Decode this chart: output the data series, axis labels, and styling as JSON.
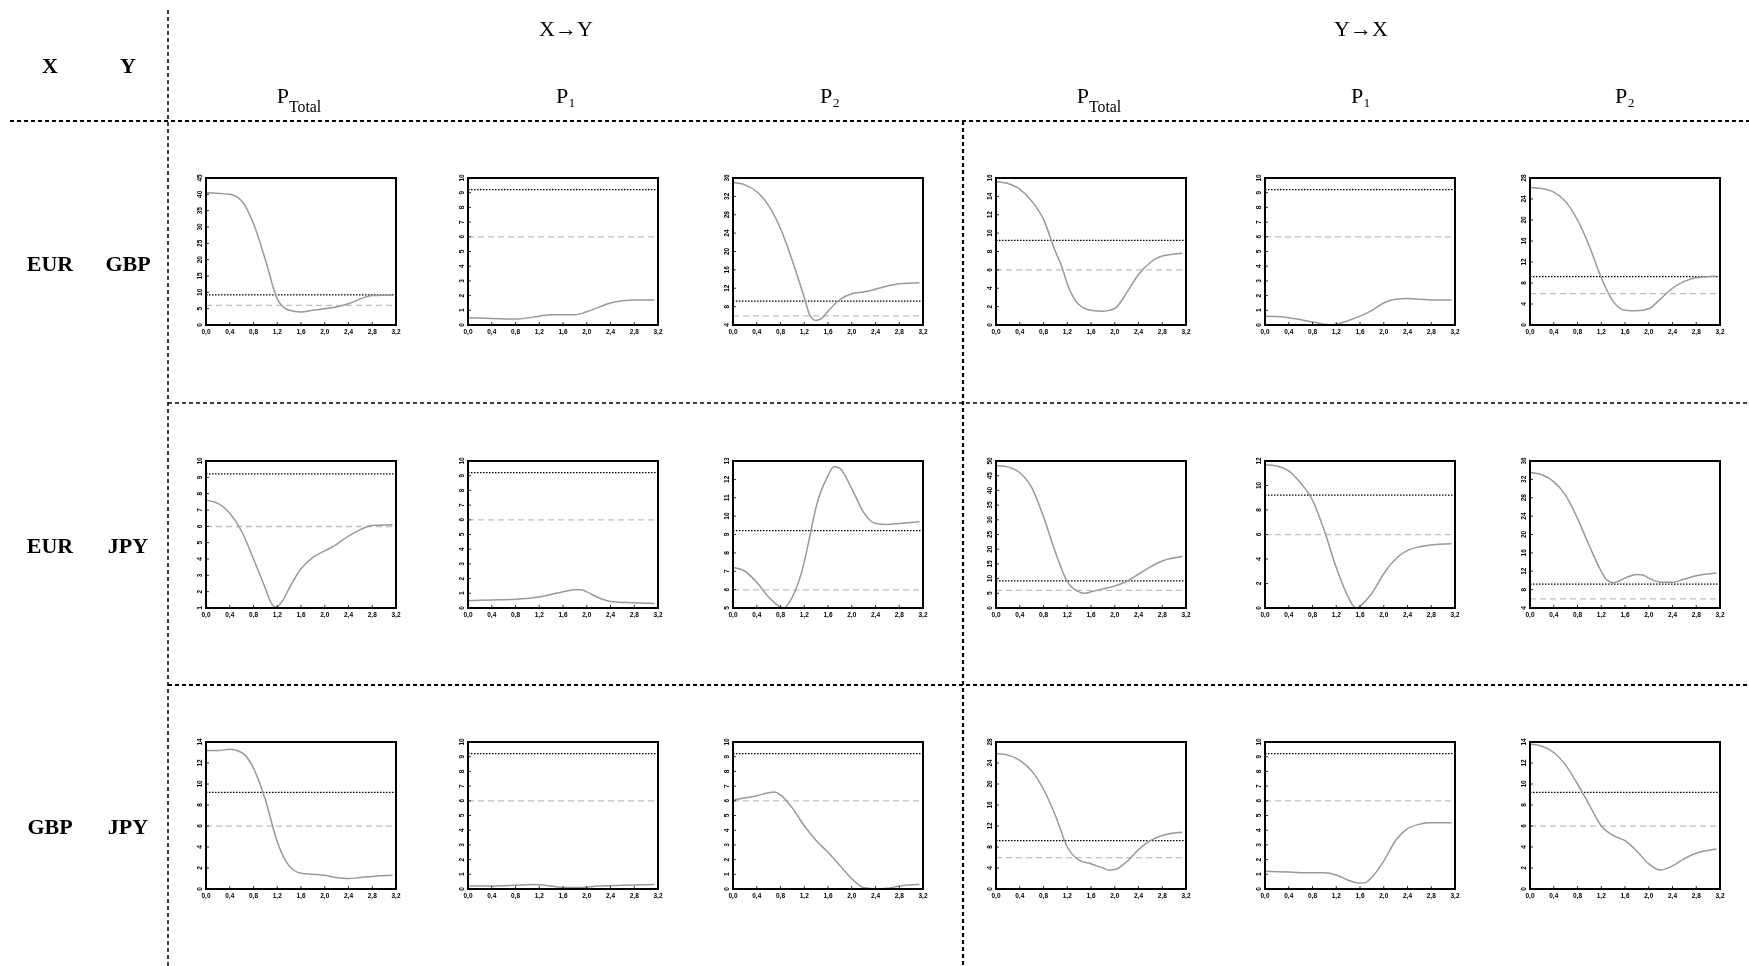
{
  "chart_data": [
    {
      "type": "other",
      "annotations": [
        "X",
        "Y",
        "X→Y",
        "Y→X",
        "P$_{Total}$",
        "P₁",
        "P₂",
        "P$_{Total}$",
        "P₁",
        "P₂",
        "EUR",
        "GBP",
        "EUR",
        "JPY",
        "GBP",
        "JPY"
      ]
    },
    {
      "type": "line",
      "x": [
        0,
        0.4,
        0.6,
        0.8,
        1.0,
        1.2,
        1.4,
        1.6,
        1.8,
        2.0,
        2.2,
        2.4,
        2.6,
        2.8,
        3.14
      ],
      "values": [
        40.5,
        40,
        38,
        31,
        20,
        8,
        4.5,
        4,
        4.5,
        5,
        5.5,
        6.5,
        8,
        9,
        9.2
      ],
      "color": "#999999",
      "xlim": [
        0,
        3.2
      ],
      "xticks": [
        {
          "value": 0,
          "label": "0,0"
        },
        {
          "value": 0.4,
          "label": "0,4"
        },
        {
          "value": 0.8,
          "label": "0,8"
        },
        {
          "value": 1.2,
          "label": "1,2"
        },
        {
          "value": 1.6,
          "label": "1,6"
        },
        {
          "value": 2.0,
          "label": "2,0"
        },
        {
          "value": 2.4,
          "label": "2,4"
        },
        {
          "value": 2.8,
          "label": "2,8"
        },
        {
          "value": 3.2,
          "label": "3,2"
        }
      ],
      "ylim": [
        0,
        45
      ],
      "yticks": [
        0,
        5,
        10,
        15,
        20,
        25,
        30,
        35,
        40,
        45
      ],
      "ref_lines": [
        {
          "axis": "y",
          "value": 9.21,
          "color": "#000000",
          "line_style": "dotted"
        },
        {
          "axis": "y",
          "value": 5.99,
          "color": "#c0c0c0",
          "line_style": "dashed"
        }
      ]
    },
    {
      "type": "line",
      "x": [
        0,
        0.4,
        0.8,
        1.2,
        1.4,
        1.6,
        1.8,
        2.0,
        2.2,
        2.4,
        2.6,
        2.8,
        3.14
      ],
      "values": [
        0.5,
        0.45,
        0.4,
        0.6,
        0.7,
        0.7,
        0.7,
        0.9,
        1.2,
        1.5,
        1.65,
        1.7,
        1.7
      ],
      "color": "#999999",
      "xlim": [
        0,
        3.2
      ],
      "xticks": [
        {
          "value": 0,
          "label": "0,0"
        },
        {
          "value": 0.4,
          "label": "0,4"
        },
        {
          "value": 0.8,
          "label": "0,8"
        },
        {
          "value": 1.2,
          "label": "1,2"
        },
        {
          "value": 1.6,
          "label": "1,6"
        },
        {
          "value": 2.0,
          "label": "2,0"
        },
        {
          "value": 2.4,
          "label": "2,4"
        },
        {
          "value": 2.8,
          "label": "2,8"
        },
        {
          "value": 3.2,
          "label": "3,2"
        }
      ],
      "ylim": [
        0,
        10
      ],
      "yticks": [
        0,
        1,
        2,
        3,
        4,
        5,
        6,
        7,
        8,
        9,
        10
      ],
      "ref_lines": [
        {
          "axis": "y",
          "value": 9.21,
          "color": "#000000",
          "line_style": "dotted"
        },
        {
          "axis": "y",
          "value": 5.99,
          "color": "#c0c0c0",
          "line_style": "dashed"
        }
      ]
    },
    {
      "type": "line",
      "x": [
        0,
        0.2,
        0.4,
        0.6,
        0.8,
        1.0,
        1.2,
        1.3,
        1.4,
        1.5,
        1.6,
        1.8,
        2.0,
        2.2,
        2.4,
        2.6,
        2.8,
        3.14
      ],
      "values": [
        35,
        34.5,
        33,
        30,
        25,
        18,
        10,
        6,
        5,
        5.5,
        7,
        9.5,
        10.8,
        11.2,
        11.8,
        12.5,
        13,
        13.2
      ],
      "color": "#999999",
      "xlim": [
        0,
        3.2
      ],
      "xticks": [
        {
          "value": 0,
          "label": "0,0"
        },
        {
          "value": 0.4,
          "label": "0,4"
        },
        {
          "value": 0.8,
          "label": "0,8"
        },
        {
          "value": 1.2,
          "label": "1,2"
        },
        {
          "value": 1.6,
          "label": "1,6"
        },
        {
          "value": 2.0,
          "label": "2,0"
        },
        {
          "value": 2.4,
          "label": "2,4"
        },
        {
          "value": 2.8,
          "label": "2,8"
        },
        {
          "value": 3.2,
          "label": "3,2"
        }
      ],
      "ylim": [
        4,
        36
      ],
      "yticks": [
        4,
        8,
        12,
        16,
        20,
        24,
        28,
        32,
        36
      ],
      "ref_lines": [
        {
          "axis": "y",
          "value": 9.21,
          "color": "#000000",
          "line_style": "dotted"
        },
        {
          "axis": "y",
          "value": 5.99,
          "color": "#c0c0c0",
          "line_style": "dashed"
        }
      ]
    },
    {
      "type": "line",
      "x": [
        0,
        0.2,
        0.4,
        0.6,
        0.8,
        1.0,
        1.1,
        1.2,
        1.4,
        1.6,
        1.8,
        2.0,
        2.2,
        2.4,
        2.6,
        2.8,
        3.14
      ],
      "values": [
        15.6,
        15.4,
        14.8,
        13.5,
        11.5,
        8,
        6.5,
        4.5,
        2.2,
        1.6,
        1.5,
        1.8,
        3.5,
        5.5,
        6.8,
        7.5,
        7.8
      ],
      "color": "#999999",
      "xlim": [
        0,
        3.2
      ],
      "xticks": [
        {
          "value": 0,
          "label": "0,0"
        },
        {
          "value": 0.4,
          "label": "0,4"
        },
        {
          "value": 0.8,
          "label": "0,8"
        },
        {
          "value": 1.2,
          "label": "1,2"
        },
        {
          "value": 1.6,
          "label": "1,6"
        },
        {
          "value": 2.0,
          "label": "2,0"
        },
        {
          "value": 2.4,
          "label": "2,4"
        },
        {
          "value": 2.8,
          "label": "2,8"
        },
        {
          "value": 3.2,
          "label": "3,2"
        }
      ],
      "ylim": [
        0,
        16
      ],
      "yticks": [
        0,
        2,
        4,
        6,
        8,
        10,
        12,
        14,
        16
      ],
      "ref_lines": [
        {
          "axis": "y",
          "value": 9.21,
          "color": "#000000",
          "line_style": "dotted"
        },
        {
          "axis": "y",
          "value": 5.99,
          "color": "#c0c0c0",
          "line_style": "dashed"
        }
      ]
    },
    {
      "type": "line",
      "x": [
        0,
        0.4,
        0.8,
        1.0,
        1.1,
        1.2,
        1.4,
        1.6,
        1.8,
        2.0,
        2.2,
        2.4,
        2.6,
        2.8,
        3.14
      ],
      "values": [
        0.6,
        0.5,
        0.2,
        0.05,
        0,
        0.05,
        0.3,
        0.6,
        1.0,
        1.5,
        1.75,
        1.8,
        1.75,
        1.7,
        1.7
      ],
      "color": "#999999",
      "xlim": [
        0,
        3.2
      ],
      "xticks": [
        {
          "value": 0,
          "label": "0,0"
        },
        {
          "value": 0.4,
          "label": "0,4"
        },
        {
          "value": 0.8,
          "label": "0,8"
        },
        {
          "value": 1.2,
          "label": "1,2"
        },
        {
          "value": 1.6,
          "label": "1,6"
        },
        {
          "value": 2.0,
          "label": "2,0"
        },
        {
          "value": 2.4,
          "label": "2,4"
        },
        {
          "value": 2.8,
          "label": "2,8"
        },
        {
          "value": 3.2,
          "label": "3,2"
        }
      ],
      "ylim": [
        0,
        10
      ],
      "yticks": [
        0,
        1,
        2,
        3,
        4,
        5,
        6,
        7,
        8,
        9,
        10
      ],
      "ref_lines": [
        {
          "axis": "y",
          "value": 9.21,
          "color": "#000000",
          "line_style": "dotted"
        },
        {
          "axis": "y",
          "value": 5.99,
          "color": "#c0c0c0",
          "line_style": "dashed"
        }
      ]
    },
    {
      "type": "line",
      "x": [
        0,
        0.2,
        0.4,
        0.6,
        0.8,
        1.0,
        1.2,
        1.4,
        1.6,
        1.8,
        2.0,
        2.2,
        2.4,
        2.6,
        2.8,
        3.14
      ],
      "values": [
        26.2,
        26,
        25.3,
        23.5,
        20,
        15,
        9,
        4.5,
        2.8,
        2.7,
        3.1,
        5,
        7,
        8.3,
        9,
        9.3
      ],
      "color": "#999999",
      "xlim": [
        0,
        3.2
      ],
      "xticks": [
        {
          "value": 0,
          "label": "0,0"
        },
        {
          "value": 0.4,
          "label": "0,4"
        },
        {
          "value": 0.8,
          "label": "0,8"
        },
        {
          "value": 1.2,
          "label": "1,2"
        },
        {
          "value": 1.6,
          "label": "1,6"
        },
        {
          "value": 2.0,
          "label": "2,0"
        },
        {
          "value": 2.4,
          "label": "2,4"
        },
        {
          "value": 2.8,
          "label": "2,8"
        },
        {
          "value": 3.2,
          "label": "3,2"
        }
      ],
      "ylim": [
        0,
        28
      ],
      "yticks": [
        0,
        4,
        8,
        12,
        16,
        20,
        24,
        28
      ],
      "ref_lines": [
        {
          "axis": "y",
          "value": 9.21,
          "color": "#000000",
          "line_style": "dotted"
        },
        {
          "axis": "y",
          "value": 5.99,
          "color": "#c0c0c0",
          "line_style": "dashed"
        }
      ]
    },
    {
      "type": "line",
      "x": [
        0,
        0.2,
        0.4,
        0.6,
        0.8,
        1.0,
        1.1,
        1.17,
        1.3,
        1.4,
        1.6,
        1.8,
        2.0,
        2.2,
        2.4,
        2.6,
        2.8,
        3.14
      ],
      "values": [
        7.6,
        7.4,
        6.8,
        5.7,
        4,
        2.2,
        1.3,
        1.05,
        1.5,
        2.2,
        3.4,
        4.1,
        4.5,
        4.9,
        5.4,
        5.8,
        6.05,
        6.1
      ],
      "color": "#999999",
      "xlim": [
        0,
        3.2
      ],
      "xticks": [
        {
          "value": 0,
          "label": "0,0"
        },
        {
          "value": 0.4,
          "label": "0,4"
        },
        {
          "value": 0.8,
          "label": "0,8"
        },
        {
          "value": 1.2,
          "label": "1,2"
        },
        {
          "value": 1.6,
          "label": "1,6"
        },
        {
          "value": 2.0,
          "label": "2,0"
        },
        {
          "value": 2.4,
          "label": "2,4"
        },
        {
          "value": 2.8,
          "label": "2,8"
        },
        {
          "value": 3.2,
          "label": "3,2"
        }
      ],
      "ylim": [
        1,
        10
      ],
      "yticks": [
        1,
        2,
        3,
        4,
        5,
        6,
        7,
        8,
        9,
        10
      ],
      "ref_lines": [
        {
          "axis": "y",
          "value": 9.21,
          "color": "#000000",
          "line_style": "dotted"
        },
        {
          "axis": "y",
          "value": 5.99,
          "color": "#c0c0c0",
          "line_style": "dashed"
        }
      ]
    },
    {
      "type": "line",
      "x": [
        0,
        0.4,
        0.8,
        1.2,
        1.6,
        1.8,
        1.9,
        2.0,
        2.2,
        2.4,
        2.8,
        3.14
      ],
      "values": [
        0.5,
        0.55,
        0.6,
        0.75,
        1.1,
        1.25,
        1.25,
        1.1,
        0.7,
        0.45,
        0.35,
        0.3
      ],
      "color": "#999999",
      "xlim": [
        0,
        3.2
      ],
      "xticks": [
        {
          "value": 0,
          "label": "0,0"
        },
        {
          "value": 0.4,
          "label": "0,4"
        },
        {
          "value": 0.8,
          "label": "0,8"
        },
        {
          "value": 1.2,
          "label": "1,2"
        },
        {
          "value": 1.6,
          "label": "1,6"
        },
        {
          "value": 2.0,
          "label": "2,0"
        },
        {
          "value": 2.4,
          "label": "2,4"
        },
        {
          "value": 2.8,
          "label": "2,8"
        },
        {
          "value": 3.2,
          "label": "3,2"
        }
      ],
      "ylim": [
        0,
        10
      ],
      "yticks": [
        0,
        1,
        2,
        3,
        4,
        5,
        6,
        7,
        8,
        9,
        10
      ],
      "ref_lines": [
        {
          "axis": "y",
          "value": 9.21,
          "color": "#000000",
          "line_style": "dotted"
        },
        {
          "axis": "y",
          "value": 5.99,
          "color": "#c0c0c0",
          "line_style": "dashed"
        }
      ]
    },
    {
      "type": "line",
      "x": [
        0,
        0.2,
        0.4,
        0.6,
        0.8,
        0.85,
        1.0,
        1.2,
        1.3,
        1.4,
        1.6,
        1.7,
        1.8,
        2.0,
        2.2,
        2.4,
        2.6,
        2.8,
        3.14
      ],
      "values": [
        7.2,
        7.0,
        6.4,
        5.6,
        5.05,
        5,
        5.6,
        7.5,
        9,
        10.5,
        12.2,
        12.7,
        12.6,
        11.5,
        10.2,
        9.6,
        9.55,
        9.6,
        9.7
      ],
      "color": "#999999",
      "xlim": [
        0,
        3.2
      ],
      "xticks": [
        {
          "value": 0,
          "label": "0,0"
        },
        {
          "value": 0.4,
          "label": "0,4"
        },
        {
          "value": 0.8,
          "label": "0,8"
        },
        {
          "value": 1.2,
          "label": "1,2"
        },
        {
          "value": 1.6,
          "label": "1,6"
        },
        {
          "value": 2.0,
          "label": "2,0"
        },
        {
          "value": 2.4,
          "label": "2,4"
        },
        {
          "value": 2.8,
          "label": "2,8"
        },
        {
          "value": 3.2,
          "label": "3,2"
        }
      ],
      "ylim": [
        5,
        13
      ],
      "yticks": [
        5,
        6,
        7,
        8,
        9,
        10,
        11,
        12,
        13
      ],
      "ref_lines": [
        {
          "axis": "y",
          "value": 9.21,
          "color": "#000000",
          "line_style": "dotted"
        },
        {
          "axis": "y",
          "value": 5.99,
          "color": "#c0c0c0",
          "line_style": "dashed"
        }
      ]
    },
    {
      "type": "line",
      "x": [
        0,
        0.2,
        0.4,
        0.6,
        0.8,
        1.0,
        1.2,
        1.4,
        1.5,
        1.6,
        1.8,
        2.0,
        2.2,
        2.4,
        2.6,
        2.8,
        3.14
      ],
      "values": [
        48.5,
        48,
        46,
        41,
        31,
        19,
        9,
        5.5,
        5,
        5.5,
        6.5,
        7.5,
        9,
        11.5,
        14,
        16,
        17.5
      ],
      "color": "#999999",
      "xlim": [
        0,
        3.2
      ],
      "xticks": [
        {
          "value": 0,
          "label": "0,0"
        },
        {
          "value": 0.4,
          "label": "0,4"
        },
        {
          "value": 0.8,
          "label": "0,8"
        },
        {
          "value": 1.2,
          "label": "1,2"
        },
        {
          "value": 1.6,
          "label": "1,6"
        },
        {
          "value": 2.0,
          "label": "2,0"
        },
        {
          "value": 2.4,
          "label": "2,4"
        },
        {
          "value": 2.8,
          "label": "2,8"
        },
        {
          "value": 3.2,
          "label": "3,2"
        }
      ],
      "ylim": [
        0,
        50
      ],
      "yticks": [
        0,
        5,
        10,
        15,
        20,
        25,
        30,
        35,
        40,
        45,
        50
      ],
      "ref_lines": [
        {
          "axis": "y",
          "value": 9.21,
          "color": "#000000",
          "line_style": "dotted"
        },
        {
          "axis": "y",
          "value": 5.99,
          "color": "#c0c0c0",
          "line_style": "dashed"
        }
      ]
    },
    {
      "type": "line",
      "x": [
        0,
        0.2,
        0.4,
        0.6,
        0.8,
        1.0,
        1.2,
        1.4,
        1.5,
        1.55,
        1.6,
        1.8,
        2.0,
        2.2,
        2.4,
        2.6,
        2.8,
        3.14
      ],
      "values": [
        11.7,
        11.6,
        11.2,
        10.2,
        8.8,
        6.3,
        3.3,
        0.9,
        0.1,
        0,
        0.15,
        1.2,
        2.8,
        4,
        4.7,
        5,
        5.15,
        5.25
      ],
      "color": "#999999",
      "xlim": [
        0,
        3.2
      ],
      "xticks": [
        {
          "value": 0,
          "label": "0,0"
        },
        {
          "value": 0.4,
          "label": "0,4"
        },
        {
          "value": 0.8,
          "label": "0,8"
        },
        {
          "value": 1.2,
          "label": "1,2"
        },
        {
          "value": 1.6,
          "label": "1,6"
        },
        {
          "value": 2.0,
          "label": "2,0"
        },
        {
          "value": 2.4,
          "label": "2,4"
        },
        {
          "value": 2.8,
          "label": "2,8"
        },
        {
          "value": 3.2,
          "label": "3,2"
        }
      ],
      "ylim": [
        0,
        12
      ],
      "yticks": [
        0,
        2,
        4,
        6,
        8,
        10,
        12
      ],
      "ref_lines": [
        {
          "axis": "y",
          "value": 9.21,
          "color": "#000000",
          "line_style": "dotted"
        },
        {
          "axis": "y",
          "value": 5.99,
          "color": "#c0c0c0",
          "line_style": "dashed"
        }
      ]
    },
    {
      "type": "line",
      "x": [
        0,
        0.2,
        0.4,
        0.6,
        0.8,
        1.0,
        1.2,
        1.3,
        1.4,
        1.6,
        1.8,
        1.9,
        2.0,
        2.2,
        2.4,
        2.6,
        2.8,
        3.14
      ],
      "values": [
        33.5,
        33,
        31.5,
        28.5,
        23.5,
        17.5,
        12,
        10,
        9.5,
        10.5,
        11.3,
        11.2,
        10.5,
        9.6,
        9.6,
        10.3,
        11,
        11.6
      ],
      "color": "#999999",
      "xlim": [
        0,
        3.2
      ],
      "xticks": [
        {
          "value": 0,
          "label": "0,0"
        },
        {
          "value": 0.4,
          "label": "0,4"
        },
        {
          "value": 0.8,
          "label": "0,8"
        },
        {
          "value": 1.2,
          "label": "1,2"
        },
        {
          "value": 1.6,
          "label": "1,6"
        },
        {
          "value": 2.0,
          "label": "2,0"
        },
        {
          "value": 2.4,
          "label": "2,4"
        },
        {
          "value": 2.8,
          "label": "2,8"
        },
        {
          "value": 3.2,
          "label": "3,2"
        }
      ],
      "ylim": [
        4,
        36
      ],
      "yticks": [
        4,
        8,
        12,
        16,
        20,
        24,
        28,
        32,
        36
      ],
      "ref_lines": [
        {
          "axis": "y",
          "value": 9.21,
          "color": "#000000",
          "line_style": "dotted"
        },
        {
          "axis": "y",
          "value": 5.99,
          "color": "#c0c0c0",
          "line_style": "dashed"
        }
      ]
    },
    {
      "type": "line",
      "x": [
        0,
        0.2,
        0.4,
        0.6,
        0.8,
        1.0,
        1.2,
        1.4,
        1.6,
        1.8,
        2.0,
        2.2,
        2.4,
        2.6,
        2.8,
        3.14
      ],
      "values": [
        13.2,
        13.2,
        13.3,
        13,
        11.5,
        8.5,
        4.5,
        2.2,
        1.5,
        1.4,
        1.3,
        1.1,
        1.0,
        1.1,
        1.2,
        1.3
      ],
      "color": "#999999",
      "xlim": [
        0,
        3.2
      ],
      "xticks": [
        {
          "value": 0,
          "label": "0,0"
        },
        {
          "value": 0.4,
          "label": "0,4"
        },
        {
          "value": 0.8,
          "label": "0,8"
        },
        {
          "value": 1.2,
          "label": "1,2"
        },
        {
          "value": 1.6,
          "label": "1,6"
        },
        {
          "value": 2.0,
          "label": "2,0"
        },
        {
          "value": 2.4,
          "label": "2,4"
        },
        {
          "value": 2.8,
          "label": "2,8"
        },
        {
          "value": 3.2,
          "label": "3,2"
        }
      ],
      "ylim": [
        0,
        14
      ],
      "yticks": [
        0,
        2,
        4,
        6,
        8,
        10,
        12,
        14
      ],
      "ref_lines": [
        {
          "axis": "y",
          "value": 9.21,
          "color": "#000000",
          "line_style": "dotted"
        },
        {
          "axis": "y",
          "value": 5.99,
          "color": "#c0c0c0",
          "line_style": "dashed"
        }
      ]
    },
    {
      "type": "line",
      "x": [
        0,
        0.4,
        0.8,
        1.1,
        1.4,
        1.6,
        1.9,
        2.2,
        2.6,
        3.14
      ],
      "values": [
        0.2,
        0.2,
        0.25,
        0.3,
        0.2,
        0.1,
        0.1,
        0.2,
        0.25,
        0.3
      ],
      "color": "#999999",
      "xlim": [
        0,
        3.2
      ],
      "xticks": [
        {
          "value": 0,
          "label": "0,0"
        },
        {
          "value": 0.4,
          "label": "0,4"
        },
        {
          "value": 0.8,
          "label": "0,8"
        },
        {
          "value": 1.2,
          "label": "1,2"
        },
        {
          "value": 1.6,
          "label": "1,6"
        },
        {
          "value": 2.0,
          "label": "2,0"
        },
        {
          "value": 2.4,
          "label": "2,4"
        },
        {
          "value": 2.8,
          "label": "2,8"
        },
        {
          "value": 3.2,
          "label": "3,2"
        }
      ],
      "ylim": [
        0,
        10
      ],
      "yticks": [
        0,
        1,
        2,
        3,
        4,
        5,
        6,
        7,
        8,
        9,
        10
      ],
      "ref_lines": [
        {
          "axis": "y",
          "value": 9.21,
          "color": "#000000",
          "line_style": "dotted"
        },
        {
          "axis": "y",
          "value": 5.99,
          "color": "#c0c0c0",
          "line_style": "dashed"
        }
      ]
    },
    {
      "type": "line",
      "x": [
        0,
        0.2,
        0.4,
        0.6,
        0.7,
        0.8,
        1.0,
        1.2,
        1.4,
        1.6,
        1.8,
        2.0,
        2.2,
        2.4,
        2.6,
        2.8,
        3.14
      ],
      "values": [
        6.05,
        6.2,
        6.35,
        6.55,
        6.6,
        6.4,
        5.5,
        4.3,
        3.3,
        2.5,
        1.6,
        0.7,
        0.1,
        0,
        0.05,
        0.2,
        0.3
      ],
      "color": "#999999",
      "xlim": [
        0,
        3.2
      ],
      "xticks": [
        {
          "value": 0,
          "label": "0,0"
        },
        {
          "value": 0.4,
          "label": "0,4"
        },
        {
          "value": 0.8,
          "label": "0,8"
        },
        {
          "value": 1.2,
          "label": "1,2"
        },
        {
          "value": 1.6,
          "label": "1,6"
        },
        {
          "value": 2.0,
          "label": "2,0"
        },
        {
          "value": 2.4,
          "label": "2,4"
        },
        {
          "value": 2.8,
          "label": "2,8"
        },
        {
          "value": 3.2,
          "label": "3,2"
        }
      ],
      "ylim": [
        0,
        10
      ],
      "yticks": [
        0,
        1,
        2,
        3,
        4,
        5,
        6,
        7,
        8,
        9,
        10
      ],
      "ref_lines": [
        {
          "axis": "y",
          "value": 9.21,
          "color": "#000000",
          "line_style": "dotted"
        },
        {
          "axis": "y",
          "value": 5.99,
          "color": "#c0c0c0",
          "line_style": "dashed"
        }
      ]
    },
    {
      "type": "line",
      "x": [
        0,
        0.2,
        0.4,
        0.6,
        0.8,
        1.0,
        1.2,
        1.4,
        1.6,
        1.8,
        1.9,
        2.0,
        2.2,
        2.4,
        2.6,
        2.8,
        3.14
      ],
      "values": [
        25.8,
        25.5,
        24.5,
        22.5,
        19,
        14,
        8,
        5.5,
        4.8,
        4,
        3.6,
        3.7,
        5.2,
        7.5,
        9.2,
        10.2,
        10.8
      ],
      "color": "#999999",
      "xlim": [
        0,
        3.2
      ],
      "xticks": [
        {
          "value": 0,
          "label": "0,0"
        },
        {
          "value": 0.4,
          "label": "0,4"
        },
        {
          "value": 0.8,
          "label": "0,8"
        },
        {
          "value": 1.2,
          "label": "1,2"
        },
        {
          "value": 1.6,
          "label": "1,6"
        },
        {
          "value": 2.0,
          "label": "2,0"
        },
        {
          "value": 2.4,
          "label": "2,4"
        },
        {
          "value": 2.8,
          "label": "2,8"
        },
        {
          "value": 3.2,
          "label": "3,2"
        }
      ],
      "ylim": [
        0,
        28
      ],
      "yticks": [
        0,
        4,
        8,
        12,
        16,
        20,
        24,
        28
      ],
      "ref_lines": [
        {
          "axis": "y",
          "value": 9.21,
          "color": "#000000",
          "line_style": "dotted"
        },
        {
          "axis": "y",
          "value": 5.99,
          "color": "#c0c0c0",
          "line_style": "dashed"
        }
      ]
    },
    {
      "type": "line",
      "x": [
        0,
        0.4,
        0.8,
        1.0,
        1.2,
        1.4,
        1.6,
        1.7,
        1.8,
        2.0,
        2.2,
        2.4,
        2.6,
        2.8,
        3.14
      ],
      "values": [
        1.2,
        1.15,
        1.1,
        1.1,
        0.95,
        0.6,
        0.4,
        0.45,
        0.8,
        1.9,
        3.3,
        4.1,
        4.4,
        4.5,
        4.5
      ],
      "color": "#999999",
      "xlim": [
        0,
        3.2
      ],
      "xticks": [
        {
          "value": 0,
          "label": "0,0"
        },
        {
          "value": 0.4,
          "label": "0,4"
        },
        {
          "value": 0.8,
          "label": "0,8"
        },
        {
          "value": 1.2,
          "label": "1,2"
        },
        {
          "value": 1.6,
          "label": "1,6"
        },
        {
          "value": 2.0,
          "label": "2,0"
        },
        {
          "value": 2.4,
          "label": "2,4"
        },
        {
          "value": 2.8,
          "label": "2,8"
        },
        {
          "value": 3.2,
          "label": "3,2"
        }
      ],
      "ylim": [
        0,
        10
      ],
      "yticks": [
        0,
        1,
        2,
        3,
        4,
        5,
        6,
        7,
        8,
        9,
        10
      ],
      "ref_lines": [
        {
          "axis": "y",
          "value": 9.21,
          "color": "#000000",
          "line_style": "dotted"
        },
        {
          "axis": "y",
          "value": 5.99,
          "color": "#c0c0c0",
          "line_style": "dashed"
        }
      ]
    },
    {
      "type": "line",
      "x": [
        0,
        0.2,
        0.4,
        0.6,
        0.8,
        1.0,
        1.2,
        1.4,
        1.6,
        1.8,
        2.0,
        2.2,
        2.4,
        2.6,
        2.8,
        3.14
      ],
      "values": [
        13.8,
        13.6,
        13,
        11.8,
        10,
        8,
        6,
        5.1,
        4.6,
        3.6,
        2.4,
        1.8,
        2.2,
        2.9,
        3.4,
        3.8
      ],
      "color": "#999999",
      "xlim": [
        0,
        3.2
      ],
      "xticks": [
        {
          "value": 0,
          "label": "0,0"
        },
        {
          "value": 0.4,
          "label": "0,4"
        },
        {
          "value": 0.8,
          "label": "0,8"
        },
        {
          "value": 1.2,
          "label": "1,2"
        },
        {
          "value": 1.6,
          "label": "1,6"
        },
        {
          "value": 2.0,
          "label": "2,0"
        },
        {
          "value": 2.4,
          "label": "2,4"
        },
        {
          "value": 2.8,
          "label": "2,8"
        },
        {
          "value": 3.2,
          "label": "3,2"
        }
      ],
      "ylim": [
        0,
        14
      ],
      "yticks": [
        0,
        2,
        4,
        6,
        8,
        10,
        12,
        14
      ],
      "ref_lines": [
        {
          "axis": "y",
          "value": 9.21,
          "color": "#000000",
          "line_style": "dotted"
        },
        {
          "axis": "y",
          "value": 5.99,
          "color": "#c0c0c0",
          "line_style": "dashed"
        }
      ]
    }
  ]
}
